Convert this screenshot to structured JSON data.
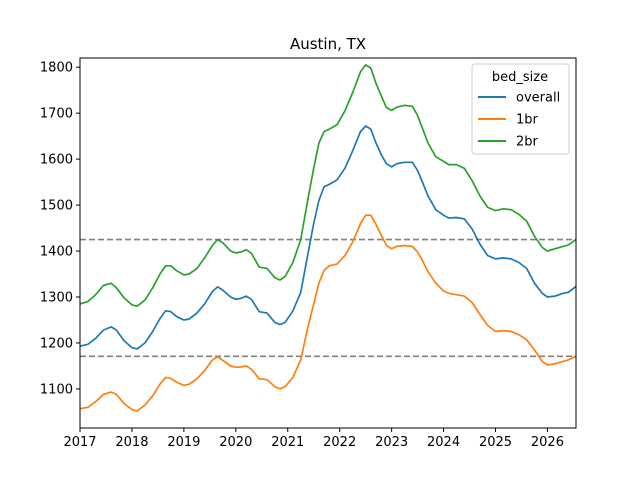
{
  "chart_data": {
    "type": "line",
    "title": "Austin, TX",
    "xlabel": "",
    "ylabel": "",
    "xlim": [
      2017.0,
      2026.55
    ],
    "ylim": [
      1015,
      1820
    ],
    "x_ticks": [
      "2017",
      "2018",
      "2019",
      "2020",
      "2021",
      "2022",
      "2023",
      "2024",
      "2025",
      "2026"
    ],
    "y_ticks": [
      1100,
      1200,
      1300,
      1400,
      1500,
      1600,
      1700,
      1800
    ],
    "legend": {
      "title": "bed_size",
      "placement": "upper-right"
    },
    "hlines": [
      {
        "y": 1425,
        "style": "dashed",
        "color": "#808080"
      },
      {
        "y": 1171,
        "style": "dashed",
        "color": "#808080"
      }
    ],
    "series": [
      {
        "name": "overall",
        "color": "#1f77b4",
        "points": [
          [
            2017.0,
            1193
          ],
          [
            2017.15,
            1197
          ],
          [
            2017.3,
            1210
          ],
          [
            2017.45,
            1228
          ],
          [
            2017.6,
            1235
          ],
          [
            2017.7,
            1228
          ],
          [
            2017.85,
            1205
          ],
          [
            2018.0,
            1190
          ],
          [
            2018.1,
            1187
          ],
          [
            2018.25,
            1200
          ],
          [
            2018.4,
            1225
          ],
          [
            2018.55,
            1255
          ],
          [
            2018.65,
            1270
          ],
          [
            2018.75,
            1268
          ],
          [
            2018.85,
            1258
          ],
          [
            2019.0,
            1250
          ],
          [
            2019.1,
            1252
          ],
          [
            2019.25,
            1265
          ],
          [
            2019.4,
            1285
          ],
          [
            2019.55,
            1312
          ],
          [
            2019.65,
            1322
          ],
          [
            2019.75,
            1315
          ],
          [
            2019.9,
            1300
          ],
          [
            2020.0,
            1295
          ],
          [
            2020.1,
            1297
          ],
          [
            2020.2,
            1302
          ],
          [
            2020.3,
            1295
          ],
          [
            2020.45,
            1268
          ],
          [
            2020.6,
            1265
          ],
          [
            2020.75,
            1245
          ],
          [
            2020.85,
            1240
          ],
          [
            2020.95,
            1245
          ],
          [
            2021.1,
            1270
          ],
          [
            2021.25,
            1310
          ],
          [
            2021.4,
            1400
          ],
          [
            2021.5,
            1460
          ],
          [
            2021.6,
            1510
          ],
          [
            2021.7,
            1540
          ],
          [
            2021.8,
            1545
          ],
          [
            2021.95,
            1555
          ],
          [
            2022.1,
            1580
          ],
          [
            2022.25,
            1618
          ],
          [
            2022.4,
            1660
          ],
          [
            2022.5,
            1672
          ],
          [
            2022.6,
            1665
          ],
          [
            2022.7,
            1635
          ],
          [
            2022.8,
            1610
          ],
          [
            2022.9,
            1590
          ],
          [
            2023.0,
            1583
          ],
          [
            2023.1,
            1590
          ],
          [
            2023.25,
            1593
          ],
          [
            2023.4,
            1593
          ],
          [
            2023.5,
            1575
          ],
          [
            2023.6,
            1548
          ],
          [
            2023.7,
            1520
          ],
          [
            2023.85,
            1490
          ],
          [
            2024.0,
            1478
          ],
          [
            2024.1,
            1472
          ],
          [
            2024.25,
            1473
          ],
          [
            2024.4,
            1470
          ],
          [
            2024.55,
            1448
          ],
          [
            2024.7,
            1415
          ],
          [
            2024.85,
            1390
          ],
          [
            2025.0,
            1383
          ],
          [
            2025.15,
            1385
          ],
          [
            2025.3,
            1383
          ],
          [
            2025.45,
            1375
          ],
          [
            2025.6,
            1362
          ],
          [
            2025.75,
            1330
          ],
          [
            2025.9,
            1308
          ],
          [
            2026.0,
            1300
          ],
          [
            2026.15,
            1302
          ],
          [
            2026.3,
            1308
          ],
          [
            2026.4,
            1310
          ],
          [
            2026.55,
            1323
          ]
        ]
      },
      {
        "name": "1br",
        "color": "#ff7f0e",
        "points": [
          [
            2017.0,
            1057
          ],
          [
            2017.15,
            1060
          ],
          [
            2017.3,
            1072
          ],
          [
            2017.45,
            1088
          ],
          [
            2017.6,
            1093
          ],
          [
            2017.7,
            1088
          ],
          [
            2017.85,
            1068
          ],
          [
            2018.0,
            1055
          ],
          [
            2018.1,
            1052
          ],
          [
            2018.25,
            1065
          ],
          [
            2018.4,
            1085
          ],
          [
            2018.55,
            1112
          ],
          [
            2018.65,
            1125
          ],
          [
            2018.75,
            1123
          ],
          [
            2018.85,
            1115
          ],
          [
            2019.0,
            1108
          ],
          [
            2019.1,
            1110
          ],
          [
            2019.25,
            1122
          ],
          [
            2019.4,
            1140
          ],
          [
            2019.55,
            1163
          ],
          [
            2019.65,
            1170
          ],
          [
            2019.75,
            1162
          ],
          [
            2019.9,
            1150
          ],
          [
            2020.0,
            1147
          ],
          [
            2020.1,
            1148
          ],
          [
            2020.2,
            1150
          ],
          [
            2020.3,
            1143
          ],
          [
            2020.45,
            1122
          ],
          [
            2020.6,
            1120
          ],
          [
            2020.75,
            1105
          ],
          [
            2020.85,
            1100
          ],
          [
            2020.95,
            1105
          ],
          [
            2021.1,
            1125
          ],
          [
            2021.25,
            1163
          ],
          [
            2021.4,
            1240
          ],
          [
            2021.5,
            1285
          ],
          [
            2021.6,
            1330
          ],
          [
            2021.7,
            1358
          ],
          [
            2021.8,
            1368
          ],
          [
            2021.95,
            1372
          ],
          [
            2022.1,
            1390
          ],
          [
            2022.25,
            1420
          ],
          [
            2022.4,
            1460
          ],
          [
            2022.5,
            1478
          ],
          [
            2022.6,
            1478
          ],
          [
            2022.7,
            1458
          ],
          [
            2022.8,
            1435
          ],
          [
            2022.9,
            1412
          ],
          [
            2023.0,
            1405
          ],
          [
            2023.1,
            1410
          ],
          [
            2023.25,
            1412
          ],
          [
            2023.4,
            1410
          ],
          [
            2023.5,
            1398
          ],
          [
            2023.6,
            1378
          ],
          [
            2023.7,
            1355
          ],
          [
            2023.85,
            1330
          ],
          [
            2024.0,
            1313
          ],
          [
            2024.1,
            1308
          ],
          [
            2024.25,
            1305
          ],
          [
            2024.4,
            1302
          ],
          [
            2024.55,
            1288
          ],
          [
            2024.7,
            1262
          ],
          [
            2024.85,
            1238
          ],
          [
            2025.0,
            1225
          ],
          [
            2025.15,
            1227
          ],
          [
            2025.3,
            1225
          ],
          [
            2025.45,
            1218
          ],
          [
            2025.6,
            1207
          ],
          [
            2025.75,
            1185
          ],
          [
            2025.9,
            1160
          ],
          [
            2026.0,
            1152
          ],
          [
            2026.15,
            1155
          ],
          [
            2026.3,
            1160
          ],
          [
            2026.4,
            1163
          ],
          [
            2026.55,
            1171
          ]
        ]
      },
      {
        "name": "2br",
        "color": "#2ca02c",
        "points": [
          [
            2017.0,
            1285
          ],
          [
            2017.15,
            1290
          ],
          [
            2017.3,
            1305
          ],
          [
            2017.45,
            1325
          ],
          [
            2017.6,
            1330
          ],
          [
            2017.7,
            1320
          ],
          [
            2017.85,
            1298
          ],
          [
            2018.0,
            1283
          ],
          [
            2018.1,
            1280
          ],
          [
            2018.25,
            1293
          ],
          [
            2018.4,
            1320
          ],
          [
            2018.55,
            1352
          ],
          [
            2018.65,
            1368
          ],
          [
            2018.75,
            1368
          ],
          [
            2018.85,
            1358
          ],
          [
            2019.0,
            1348
          ],
          [
            2019.1,
            1350
          ],
          [
            2019.25,
            1362
          ],
          [
            2019.4,
            1385
          ],
          [
            2019.55,
            1412
          ],
          [
            2019.65,
            1425
          ],
          [
            2019.75,
            1418
          ],
          [
            2019.9,
            1400
          ],
          [
            2020.0,
            1396
          ],
          [
            2020.1,
            1398
          ],
          [
            2020.2,
            1403
          ],
          [
            2020.3,
            1395
          ],
          [
            2020.45,
            1365
          ],
          [
            2020.6,
            1362
          ],
          [
            2020.75,
            1342
          ],
          [
            2020.85,
            1337
          ],
          [
            2020.95,
            1345
          ],
          [
            2021.1,
            1375
          ],
          [
            2021.25,
            1425
          ],
          [
            2021.4,
            1520
          ],
          [
            2021.5,
            1580
          ],
          [
            2021.6,
            1635
          ],
          [
            2021.7,
            1660
          ],
          [
            2021.8,
            1665
          ],
          [
            2021.95,
            1675
          ],
          [
            2022.1,
            1705
          ],
          [
            2022.25,
            1745
          ],
          [
            2022.4,
            1790
          ],
          [
            2022.5,
            1805
          ],
          [
            2022.6,
            1798
          ],
          [
            2022.7,
            1765
          ],
          [
            2022.8,
            1738
          ],
          [
            2022.9,
            1712
          ],
          [
            2023.0,
            1706
          ],
          [
            2023.1,
            1713
          ],
          [
            2023.25,
            1717
          ],
          [
            2023.4,
            1715
          ],
          [
            2023.5,
            1695
          ],
          [
            2023.6,
            1665
          ],
          [
            2023.7,
            1635
          ],
          [
            2023.85,
            1605
          ],
          [
            2024.0,
            1595
          ],
          [
            2024.1,
            1588
          ],
          [
            2024.25,
            1588
          ],
          [
            2024.4,
            1580
          ],
          [
            2024.55,
            1553
          ],
          [
            2024.7,
            1520
          ],
          [
            2024.85,
            1495
          ],
          [
            2025.0,
            1488
          ],
          [
            2025.15,
            1492
          ],
          [
            2025.3,
            1490
          ],
          [
            2025.45,
            1480
          ],
          [
            2025.6,
            1465
          ],
          [
            2025.75,
            1432
          ],
          [
            2025.9,
            1408
          ],
          [
            2026.0,
            1400
          ],
          [
            2026.15,
            1405
          ],
          [
            2026.3,
            1410
          ],
          [
            2026.4,
            1413
          ],
          [
            2026.55,
            1425
          ]
        ]
      }
    ]
  }
}
